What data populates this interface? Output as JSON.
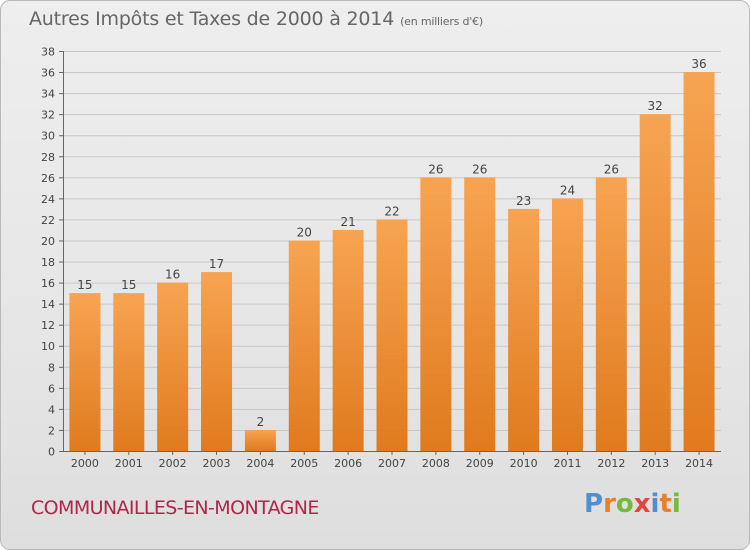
{
  "header": {
    "title": "Autres Impôts et Taxes de 2000 à 2014",
    "unit": "(en milliers d'€)"
  },
  "footer": {
    "commune": "COMMUNAILLES-EN-MONTAGNE",
    "logo_letters": [
      "P",
      "r",
      "o",
      "x",
      "i",
      "t",
      "i"
    ]
  },
  "chart_data": {
    "type": "bar",
    "title": "Autres Impôts et Taxes de 2000 à 2014",
    "subtitle": "(en milliers d'€)",
    "categories": [
      "2000",
      "2001",
      "2002",
      "2003",
      "2004",
      "2005",
      "2006",
      "2007",
      "2008",
      "2009",
      "2010",
      "2011",
      "2012",
      "2013",
      "2014"
    ],
    "values": [
      15,
      15,
      16,
      17,
      2,
      20,
      21,
      22,
      26,
      26,
      23,
      24,
      26,
      32,
      36
    ],
    "ylim": [
      0,
      38
    ],
    "yticks": [
      0,
      2,
      4,
      6,
      8,
      10,
      12,
      14,
      16,
      18,
      20,
      22,
      24,
      26,
      28,
      30,
      32,
      34,
      36,
      38
    ],
    "grid": true,
    "colors": {
      "bar_top": "#f7a452",
      "bar_bottom": "#e07a1e",
      "grid": "#c8c8c8"
    }
  }
}
